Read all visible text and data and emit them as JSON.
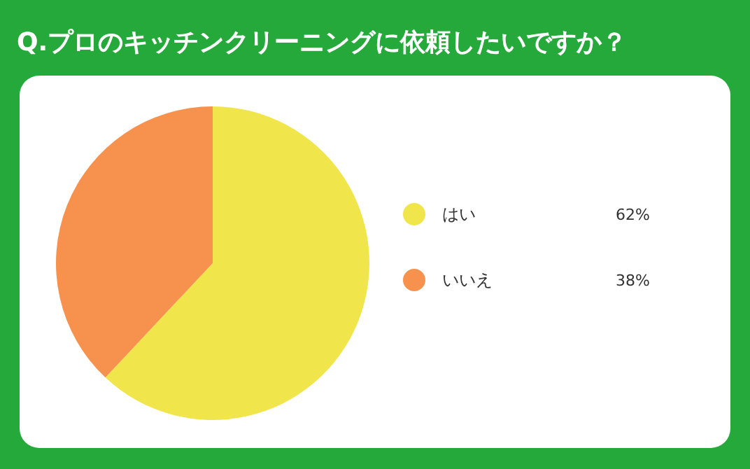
{
  "chart_data": {
    "type": "pie",
    "title": "Q.プロのキッチンクリーニングに依頼したいですか？",
    "categories": [
      "はい",
      "いいえ"
    ],
    "values": [
      62,
      38
    ],
    "colors": [
      "#f0e64b",
      "#f7914e"
    ],
    "value_labels": [
      "62%",
      "38%"
    ],
    "legend": "right"
  }
}
